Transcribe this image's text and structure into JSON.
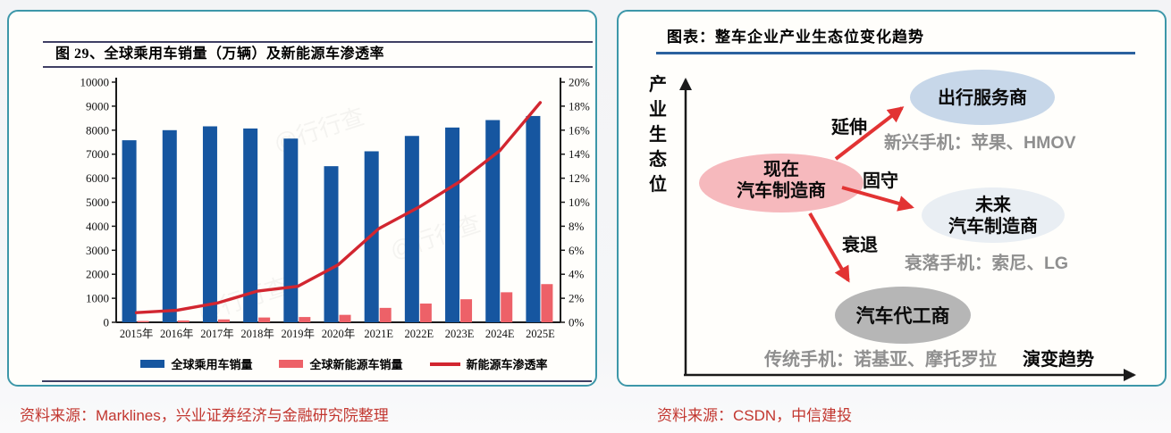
{
  "page": {
    "left_source": "资料来源：Marklines，兴业证券经济与金融研究院整理",
    "right_source": "资料来源：CSDN，中信建投",
    "source_text_color": "#c2362f",
    "card_border_color": "#3d97a9",
    "rule_color": "#3f3f63"
  },
  "left_figure": {
    "title": "图 29、全球乘用车销量（万辆）及新能源车渗透率",
    "watermark": "行行查"
  },
  "chart_data": {
    "type": "bar",
    "title": "图 29、全球乘用车销量（万辆）及新能源车渗透率",
    "categories": [
      "2015年",
      "2016年",
      "2017年",
      "2018年",
      "2019年",
      "2020年",
      "2021E",
      "2022E",
      "2023E",
      "2024E",
      "2025E"
    ],
    "series": [
      {
        "name": "全球乘用车销量",
        "type": "bar",
        "axis": "left",
        "color": "#1656a0",
        "values": [
          7580,
          8000,
          8160,
          8070,
          7650,
          6500,
          7120,
          7760,
          8110,
          8420,
          8590
        ]
      },
      {
        "name": "全球新能源车销量",
        "type": "bar",
        "axis": "left",
        "color": "#ed6168",
        "values": [
          55,
          75,
          120,
          200,
          220,
          310,
          600,
          780,
          960,
          1250,
          1590
        ]
      },
      {
        "name": "新能源车渗透率",
        "type": "line",
        "axis": "right",
        "color": "#d22630",
        "values": [
          0.8,
          1.0,
          1.6,
          2.6,
          3.0,
          4.8,
          7.8,
          9.6,
          11.7,
          14.3,
          18.3
        ]
      }
    ],
    "left_axis": {
      "min": 0,
      "max": 10000,
      "step": 1000
    },
    "right_axis": {
      "min": 0,
      "max": 20,
      "step": 2,
      "suffix": "%"
    },
    "legend_position": "bottom",
    "grid": false
  },
  "diagram": {
    "title": "图表：整车企业产业生态位变化趋势",
    "y_axis_label": "产业生态位",
    "x_axis_label": "演变趋势",
    "underline_color": "#2b619e",
    "edge_color": "#e23333",
    "annotation_color": "#8f8f8f",
    "nodes": {
      "current": {
        "lines": [
          "现在",
          "汽车制造商"
        ],
        "fill": "#f6b9bd"
      },
      "mobility": {
        "lines": [
          "出行服务商"
        ],
        "fill": "#c7d7e9"
      },
      "future": {
        "lines": [
          "未来",
          "汽车制造商"
        ],
        "fill": "#e9eef3"
      },
      "oem": {
        "lines": [
          "汽车代工商"
        ],
        "fill": "#b6b6b6"
      }
    },
    "edges": {
      "extend": {
        "label": "延伸"
      },
      "hold": {
        "label": "固守"
      },
      "decline": {
        "label": "衰退"
      }
    },
    "annotations": {
      "emerging": "新兴手机：苹果、HMOV",
      "fading": "衰落手机：索尼、LG",
      "legacy": "传统手机：诺基亚、摩托罗拉"
    }
  }
}
